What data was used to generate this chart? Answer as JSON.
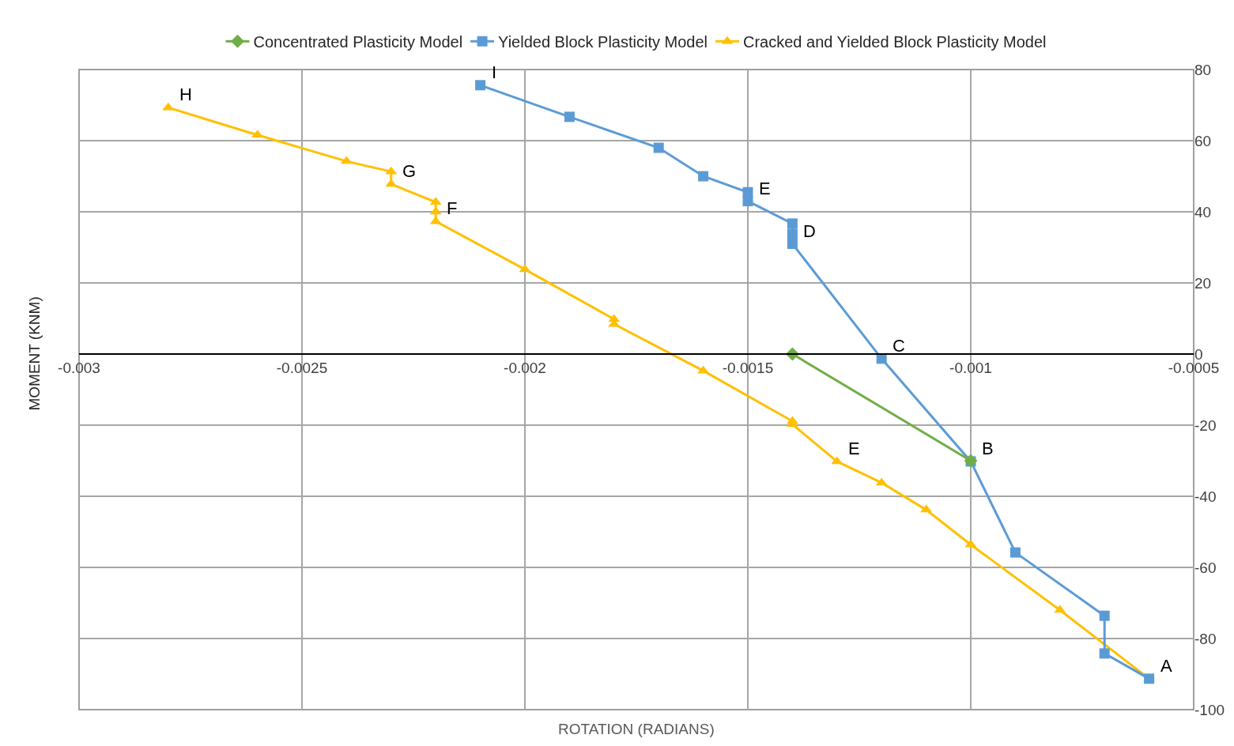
{
  "chart_data": {
    "type": "line",
    "xlabel": "ROTATION (RADIANS)",
    "ylabel": "MOMENT (KNM)",
    "xlim": [
      -0.003,
      -0.0005
    ],
    "xticks": [
      -0.003,
      -0.0025,
      -0.002,
      -0.0015,
      -0.001,
      -0.0005
    ],
    "ylim": [
      -100,
      80
    ],
    "yticks": [
      -100,
      -80,
      -60,
      -40,
      -20,
      0,
      20,
      40,
      60,
      80
    ],
    "grid": true,
    "legend": "top",
    "series": [
      {
        "name": "Concentrated Plasticity Model",
        "color": "#70ad47",
        "marker": "diamond",
        "x": [
          -0.0014,
          -0.001
        ],
        "values": [
          0,
          -30
        ]
      },
      {
        "name": "Yielded Block Plasticity Model",
        "color": "#5b9bd5",
        "marker": "square",
        "x": [
          -0.0021,
          -0.0019,
          -0.0017,
          -0.0016,
          -0.0015,
          -0.0015,
          -0.0014,
          -0.0014,
          -0.0014,
          -0.0012,
          -0.001,
          -0.0009,
          -0.0007,
          -0.0007,
          -0.0006
        ],
        "values": [
          75.6,
          66.7,
          58,
          50,
          45.5,
          43,
          36.7,
          33.8,
          31,
          -1.3,
          -30.2,
          -55.8,
          -73.6,
          -84.2,
          -91.3
        ]
      },
      {
        "name": "Cracked and Yielded Block Plasticity Model",
        "color": "#ffc000",
        "marker": "triangle",
        "x": [
          -0.0028,
          -0.0026,
          -0.0024,
          -0.0023,
          -0.0023,
          -0.0022,
          -0.0022,
          -0.0022,
          -0.002,
          -0.0018,
          -0.0018,
          -0.0016,
          -0.0014,
          -0.0014,
          -0.0013,
          -0.0012,
          -0.0011,
          -0.001,
          -0.0008,
          -0.0006
        ],
        "values": [
          69.3,
          61.6,
          54.2,
          51.3,
          47.8,
          42.7,
          40,
          37.3,
          23.8,
          9.8,
          8.4,
          -4.7,
          -18.9,
          -19.8,
          -30.2,
          -36.2,
          -43.8,
          -53.6,
          -72,
          -91.3
        ]
      }
    ],
    "annotations": [
      {
        "text": "A",
        "x": -0.0006,
        "y": -91.3
      },
      {
        "text": "B",
        "x": -0.001,
        "y": -30.2
      },
      {
        "text": "C",
        "x": -0.0012,
        "y": -1.3
      },
      {
        "text": "D",
        "x": -0.0014,
        "y": 31
      },
      {
        "text": "E",
        "x": -0.0015,
        "y": 43
      },
      {
        "text": "E",
        "x": -0.0013,
        "y": -30.2
      },
      {
        "text": "F",
        "x": -0.0022,
        "y": 37.3
      },
      {
        "text": "G",
        "x": -0.0023,
        "y": 47.8
      },
      {
        "text": "H",
        "x": -0.0028,
        "y": 69.3
      },
      {
        "text": "I",
        "x": -0.0021,
        "y": 75.6
      }
    ]
  }
}
